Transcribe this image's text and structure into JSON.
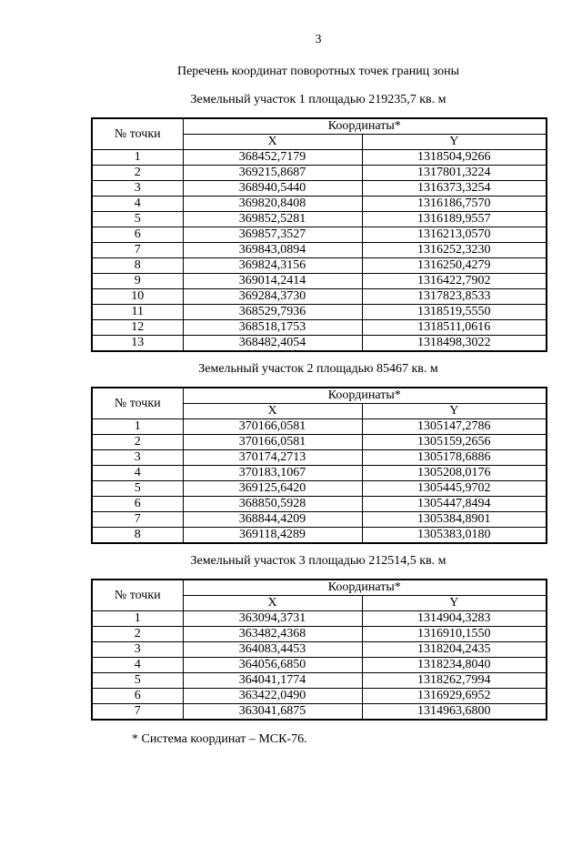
{
  "page": {
    "number": "3"
  },
  "doc_title": "Перечень координат поворотных точек границ зоны",
  "table_header": {
    "point_col": "№ точки",
    "coords_col": "Координаты*",
    "x_col": "X",
    "y_col": "Y"
  },
  "parcels": [
    {
      "caption": "Земельный участок 1 площадью 219235,7 кв. м",
      "rows": [
        {
          "n": "1",
          "x": "368452,7179",
          "y": "1318504,9266"
        },
        {
          "n": "2",
          "x": "369215,8687",
          "y": "1317801,3224"
        },
        {
          "n": "3",
          "x": "368940,5440",
          "y": "1316373,3254"
        },
        {
          "n": "4",
          "x": "369820,8408",
          "y": "1316186,7570"
        },
        {
          "n": "5",
          "x": "369852,5281",
          "y": "1316189,9557"
        },
        {
          "n": "6",
          "x": "369857,3527",
          "y": "1316213,0570"
        },
        {
          "n": "7",
          "x": "369843,0894",
          "y": "1316252,3230"
        },
        {
          "n": "8",
          "x": "369824,3156",
          "y": "1316250,4279"
        },
        {
          "n": "9",
          "x": "369014,2414",
          "y": "1316422,7902"
        },
        {
          "n": "10",
          "x": "369284,3730",
          "y": "1317823,8533"
        },
        {
          "n": "11",
          "x": "368529,7936",
          "y": "1318519,5550"
        },
        {
          "n": "12",
          "x": "368518,1753",
          "y": "1318511,0616"
        },
        {
          "n": "13",
          "x": "368482,4054",
          "y": "1318498,3022"
        }
      ]
    },
    {
      "caption": "Земельный участок 2 площадью 85467 кв. м",
      "rows": [
        {
          "n": "1",
          "x": "370166,0581",
          "y": "1305147,2786"
        },
        {
          "n": "2",
          "x": "370166,0581",
          "y": "1305159,2656"
        },
        {
          "n": "3",
          "x": "370174,2713",
          "y": "1305178,6886"
        },
        {
          "n": "4",
          "x": "370183,1067",
          "y": "1305208,0176"
        },
        {
          "n": "5",
          "x": "369125,6420",
          "y": "1305445,9702"
        },
        {
          "n": "6",
          "x": "368850,5928",
          "y": "1305447,8494"
        },
        {
          "n": "7",
          "x": "368844,4209",
          "y": "1305384,8901"
        },
        {
          "n": "8",
          "x": "369118,4289",
          "y": "1305383,0180"
        }
      ]
    },
    {
      "caption": "Земельный участок 3 площадью 212514,5 кв. м",
      "rows": [
        {
          "n": "1",
          "x": "363094,3731",
          "y": "1314904,3283"
        },
        {
          "n": "2",
          "x": "363482,4368",
          "y": "1316910,1550"
        },
        {
          "n": "3",
          "x": "364083,4453",
          "y": "1318204,2435"
        },
        {
          "n": "4",
          "x": "364056,6850",
          "y": "1318234,8040"
        },
        {
          "n": "5",
          "x": "364041,1774",
          "y": "1318262,7994"
        },
        {
          "n": "6",
          "x": "363422,0490",
          "y": "1316929,6952"
        },
        {
          "n": "7",
          "x": "363041,6875",
          "y": "1314963,6800"
        }
      ]
    }
  ],
  "footnote": "* Система координат – МСК-76."
}
